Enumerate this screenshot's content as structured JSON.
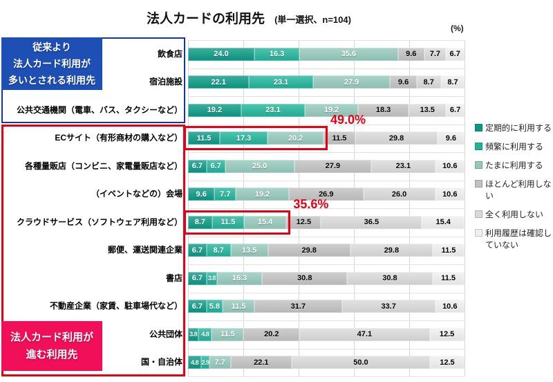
{
  "title": "法人カードの利用先",
  "subtitle": "(単一選択、n=104)",
  "unit_label": "(%)",
  "callouts": {
    "blue": {
      "lines": [
        "従来より",
        "法人カード利用が",
        "多いとされる利用先"
      ],
      "fill": "#1d4fb5",
      "border": "#16339e"
    },
    "pink": {
      "lines": [
        "法人カード利用が",
        "進む利用先"
      ],
      "fill": "#f00f58",
      "border": "#e60012"
    }
  },
  "legend": [
    {
      "label": "定期的に利用する",
      "color": "#089884"
    },
    {
      "label": "頻繁に利用する",
      "color": "#1fb39a"
    },
    {
      "label": "たまに利用する",
      "color": "#93c8ba"
    },
    {
      "label": "ほとんど利用しない",
      "color": "#c1c1c1"
    },
    {
      "label": "全く利用しない",
      "color": "#d9d9d9"
    },
    {
      "label": "利用履歴は確認していない",
      "color": "#efefef"
    }
  ],
  "chart_data": {
    "type": "bar",
    "orientation": "horizontal",
    "stacked": true,
    "title": "法人カードの利用先",
    "subtitle": "(単一選択、n=104)",
    "unit": "%",
    "xlim": [
      0,
      100
    ],
    "gridline_step": 20,
    "grid": true,
    "legend_position": "right",
    "categories": [
      "飲食店",
      "宿泊施設",
      "公共交通機関（電車、バス、タクシーなど）",
      "ECサイト（有形商材の購入など）",
      "各種量販店（コンビニ、家電量販店など）",
      "（イベントなどの）会場",
      "クラウドサービス（ソフトウェア利用など）",
      "郵便、運送関連企業",
      "書店",
      "不動産企業（家賃、駐車場代など）",
      "公共団体",
      "国・自治体"
    ],
    "series": [
      {
        "name": "定期的に利用する",
        "color": "#089884",
        "text": "light",
        "values": [
          24.0,
          22.1,
          19.2,
          11.5,
          6.7,
          9.6,
          8.7,
          6.7,
          6.7,
          6.7,
          3.8,
          4.8
        ]
      },
      {
        "name": "頻繁に利用する",
        "color": "#1fb39a",
        "text": "light",
        "values": [
          16.3,
          23.1,
          23.1,
          17.3,
          6.7,
          7.7,
          11.5,
          8.7,
          3.8,
          5.8,
          4.8,
          2.9
        ]
      },
      {
        "name": "たまに利用する",
        "color": "#93c8ba",
        "text": "light",
        "values": [
          35.6,
          27.9,
          19.2,
          20.2,
          25.0,
          19.2,
          15.4,
          13.5,
          16.3,
          11.5,
          11.5,
          7.7
        ]
      },
      {
        "name": "ほとんど利用しない",
        "color": "#c1c1c1",
        "text": "dark",
        "values": [
          9.6,
          9.6,
          18.3,
          11.5,
          27.9,
          26.9,
          12.5,
          29.8,
          30.8,
          31.7,
          20.2,
          22.1
        ]
      },
      {
        "name": "全く利用しない",
        "color": "#d9d9d9",
        "text": "dark",
        "values": [
          7.7,
          8.7,
          13.5,
          29.8,
          23.1,
          26.0,
          36.5,
          29.8,
          30.8,
          33.7,
          47.1,
          50.0
        ]
      },
      {
        "name": "利用履歴は確認していない",
        "color": "#efefef",
        "text": "dark",
        "values": [
          6.7,
          8.7,
          6.7,
          9.6,
          10.6,
          10.6,
          15.4,
          11.5,
          11.5,
          10.6,
          12.5,
          12.5
        ]
      }
    ],
    "highlights": [
      {
        "category_index": 3,
        "segment_count": 3,
        "total_label": "49.0%"
      },
      {
        "category_index": 6,
        "segment_count": 3,
        "total_label": "35.6%"
      }
    ]
  }
}
